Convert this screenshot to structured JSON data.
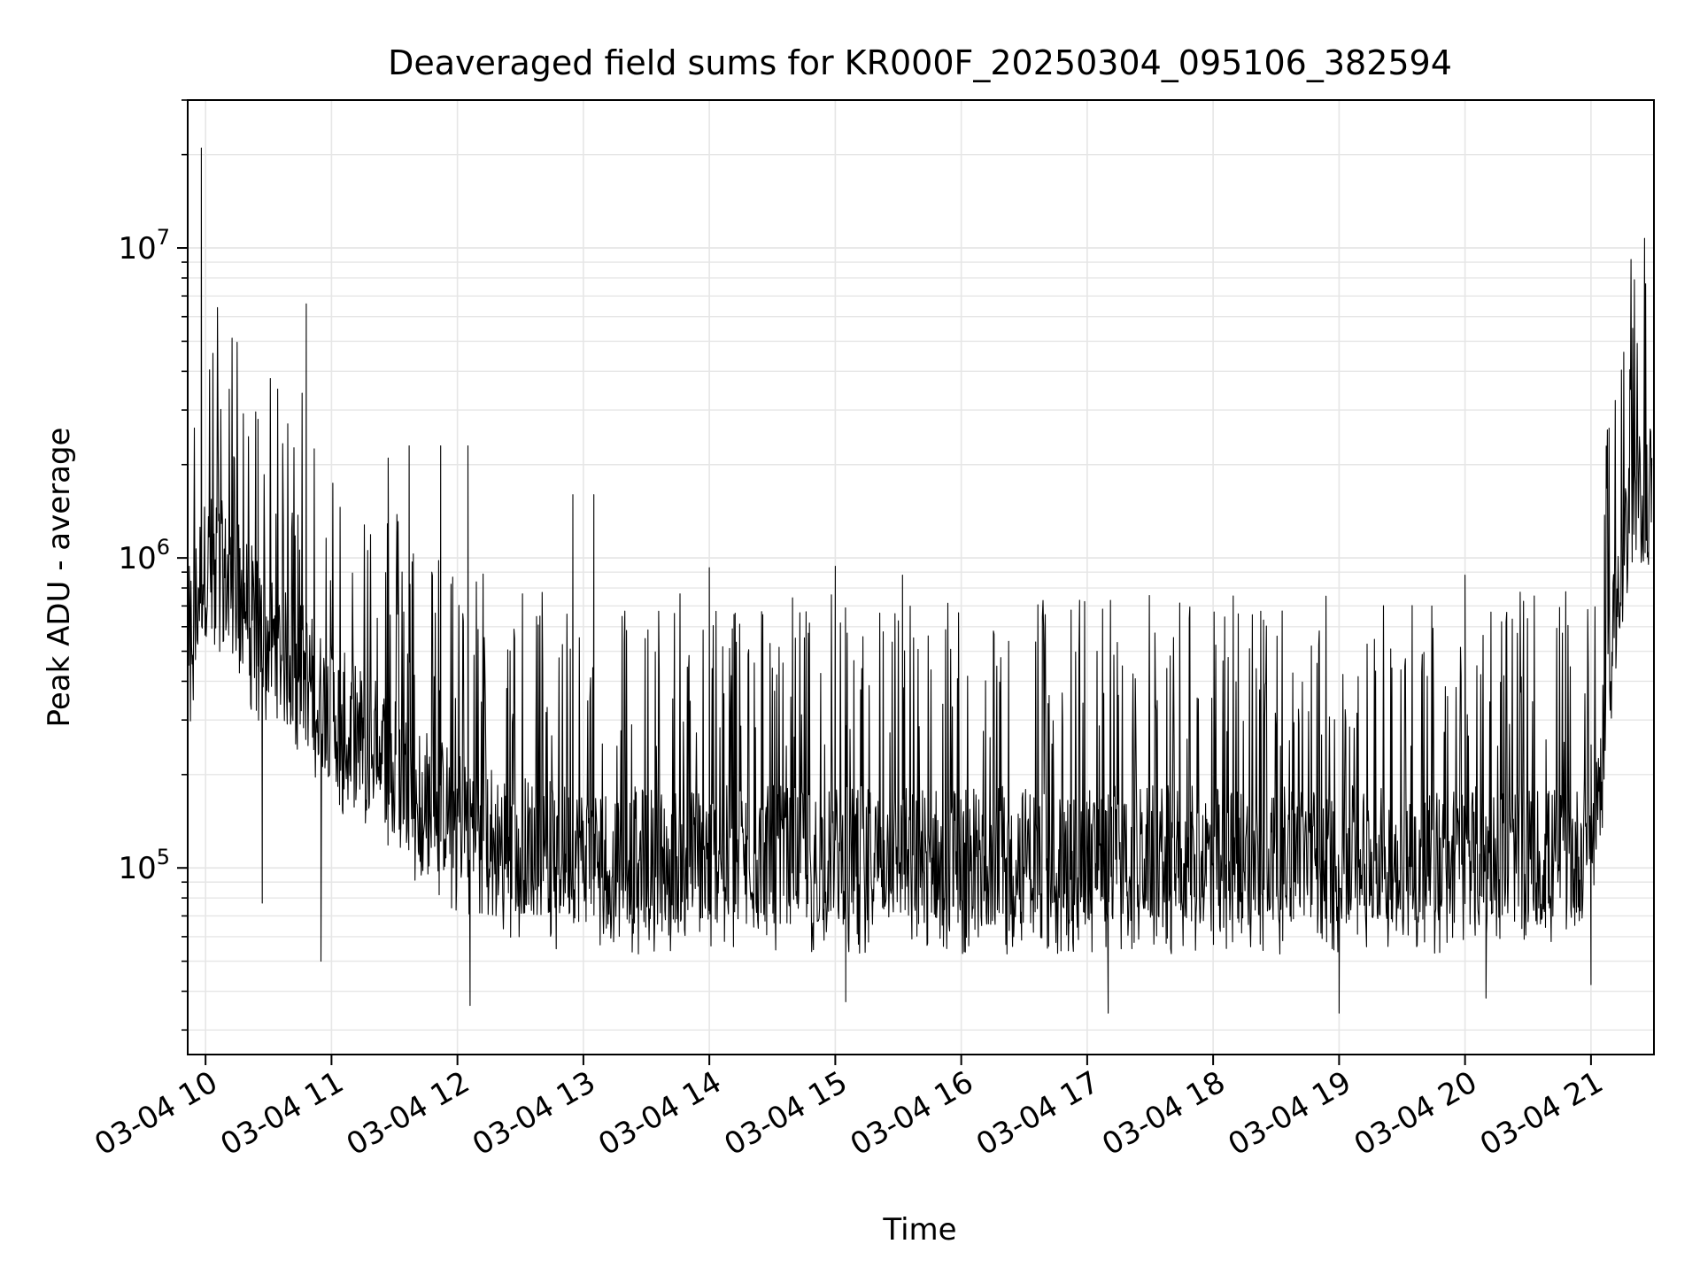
{
  "chart_data": {
    "type": "line",
    "title": "Deaveraged field sums for KR000F_20250304_095106_382594",
    "xlabel": "Time",
    "ylabel": "Peak ADU - average",
    "y_scale": "log",
    "ylim": [
      25000,
      30000000
    ],
    "xlim": [
      "2025-03-04 09:51:30",
      "2025-03-04 21:30:00"
    ],
    "grid": true,
    "line_color": "#000000",
    "grid_color": "#e6e6e6",
    "x_ticks": [
      {
        "t": "2025-03-04 10:00",
        "label": "03-04 10"
      },
      {
        "t": "2025-03-04 11:00",
        "label": "03-04 11"
      },
      {
        "t": "2025-03-04 12:00",
        "label": "03-04 12"
      },
      {
        "t": "2025-03-04 13:00",
        "label": "03-04 13"
      },
      {
        "t": "2025-03-04 14:00",
        "label": "03-04 14"
      },
      {
        "t": "2025-03-04 15:00",
        "label": "03-04 15"
      },
      {
        "t": "2025-03-04 16:00",
        "label": "03-04 16"
      },
      {
        "t": "2025-03-04 17:00",
        "label": "03-04 17"
      },
      {
        "t": "2025-03-04 18:00",
        "label": "03-04 18"
      },
      {
        "t": "2025-03-04 19:00",
        "label": "03-04 19"
      },
      {
        "t": "2025-03-04 20:00",
        "label": "03-04 20"
      },
      {
        "t": "2025-03-04 21:00",
        "label": "03-04 21"
      }
    ],
    "y_ticks": [
      {
        "value": 100000,
        "base": "10",
        "exp": "5"
      },
      {
        "value": 1000000,
        "base": "10",
        "exp": "6"
      },
      {
        "value": 10000000,
        "base": "10",
        "exp": "7"
      }
    ],
    "series": [
      {
        "x": [
          "2025-03-04 09:52",
          "2025-03-04 09:55",
          "2025-03-04 09:58",
          "2025-03-04 10:05",
          "2025-03-04 10:10",
          "2025-03-04 10:15",
          "2025-03-04 10:20",
          "2025-03-04 10:25",
          "2025-03-04 10:30",
          "2025-03-04 10:35",
          "2025-03-04 10:40",
          "2025-03-04 10:45",
          "2025-03-04 10:50",
          "2025-03-04 10:55",
          "2025-03-04 11:00",
          "2025-03-04 11:10",
          "2025-03-04 11:20",
          "2025-03-04 11:30",
          "2025-03-04 11:40",
          "2025-03-04 11:50",
          "2025-03-04 12:00",
          "2025-03-04 12:10",
          "2025-03-04 12:20",
          "2025-03-04 12:30",
          "2025-03-04 12:45",
          "2025-03-04 13:00",
          "2025-03-04 13:30",
          "2025-03-04 14:00",
          "2025-03-04 14:30",
          "2025-03-04 15:00",
          "2025-03-04 15:30",
          "2025-03-04 16:00",
          "2025-03-04 16:30",
          "2025-03-04 17:00",
          "2025-03-04 17:30",
          "2025-03-04 18:00",
          "2025-03-04 18:30",
          "2025-03-04 19:00",
          "2025-03-04 19:30",
          "2025-03-04 20:00",
          "2025-03-04 20:30",
          "2025-03-04 20:55",
          "2025-03-04 21:05",
          "2025-03-04 21:10",
          "2025-03-04 21:15",
          "2025-03-04 21:20",
          "2025-03-04 21:25",
          "2025-03-04 21:29"
        ],
        "y": [
          550000,
          700000,
          900000,
          1000000,
          850000,
          800000,
          700000,
          600000,
          550000,
          500000,
          450000,
          450000,
          400000,
          350000,
          320000,
          280000,
          250000,
          220000,
          180000,
          160000,
          150000,
          140000,
          125000,
          120000,
          115000,
          110000,
          110000,
          110000,
          110000,
          110000,
          110000,
          110000,
          110000,
          110000,
          110000,
          110000,
          110000,
          110000,
          110000,
          110000,
          110000,
          110000,
          200000,
          600000,
          1100000,
          1400000,
          1600000,
          1700000
        ],
        "spikes": [
          {
            "x": "2025-03-04 09:58",
            "y": 21000000
          },
          {
            "x": "2025-03-04 10:48",
            "y": 6600000
          },
          {
            "x": "2025-03-04 10:46",
            "y": 3400000
          },
          {
            "x": "2025-03-04 10:25",
            "y": 2800000
          },
          {
            "x": "2025-03-04 11:27",
            "y": 2100000
          },
          {
            "x": "2025-03-04 11:37",
            "y": 2300000
          },
          {
            "x": "2025-03-04 11:52",
            "y": 2300000
          },
          {
            "x": "2025-03-04 12:05",
            "y": 2300000
          },
          {
            "x": "2025-03-04 12:55",
            "y": 1600000
          },
          {
            "x": "2025-03-04 13:05",
            "y": 1600000
          },
          {
            "x": "2025-03-04 14:00",
            "y": 930000
          },
          {
            "x": "2025-03-04 15:00",
            "y": 940000
          },
          {
            "x": "2025-03-04 15:32",
            "y": 880000
          },
          {
            "x": "2025-03-04 20:00",
            "y": 880000
          }
        ],
        "dips": [
          {
            "x": "2025-03-04 10:27",
            "y": 77000
          },
          {
            "x": "2025-03-04 10:55",
            "y": 50000
          },
          {
            "x": "2025-03-04 12:06",
            "y": 36000
          },
          {
            "x": "2025-03-04 15:05",
            "y": 37000
          },
          {
            "x": "2025-03-04 17:10",
            "y": 34000
          },
          {
            "x": "2025-03-04 19:00",
            "y": 34000
          },
          {
            "x": "2025-03-04 20:10",
            "y": 38000
          },
          {
            "x": "2025-03-04 21:00",
            "y": 42000
          }
        ]
      }
    ]
  }
}
